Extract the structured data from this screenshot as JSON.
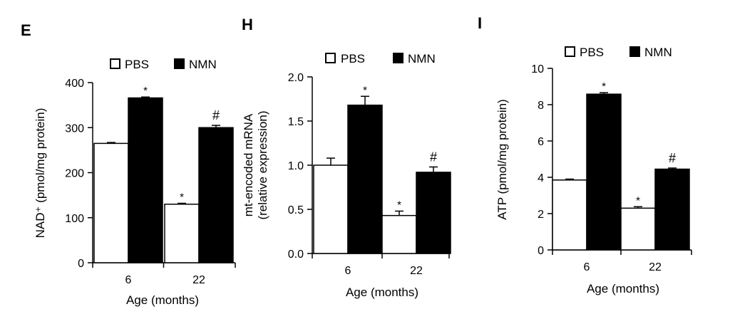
{
  "chart_data": [
    {
      "type": "bar",
      "panel_label": "E",
      "categories": [
        "6",
        "22"
      ],
      "series": [
        {
          "name": "PBS",
          "color": "#ffffff",
          "values": [
            265,
            130
          ],
          "errors": [
            2,
            2
          ]
        },
        {
          "name": "NMN",
          "color": "#000000",
          "values": [
            366,
            300
          ],
          "errors": [
            2,
            5
          ]
        }
      ],
      "annotations": [
        {
          "category": "6",
          "series": "NMN",
          "text": "*"
        },
        {
          "category": "22",
          "series": "PBS",
          "text": "*"
        },
        {
          "category": "22",
          "series": "NMN",
          "text": "#"
        }
      ],
      "xlabel": "Age (months)",
      "ylabel": "NAD⁺ (pmol/mg protein)",
      "ylim": [
        0,
        400
      ],
      "yticks": [
        "0",
        "100",
        "200",
        "300",
        "400"
      ],
      "legend": "top"
    },
    {
      "type": "bar",
      "panel_label": "H",
      "categories": [
        "6",
        "22"
      ],
      "series": [
        {
          "name": "PBS",
          "color": "#ffffff",
          "values": [
            1.0,
            0.43
          ],
          "errors": [
            0.08,
            0.05
          ]
        },
        {
          "name": "NMN",
          "color": "#000000",
          "values": [
            1.68,
            0.92
          ],
          "errors": [
            0.1,
            0.06
          ]
        }
      ],
      "annotations": [
        {
          "category": "6",
          "series": "NMN",
          "text": "*"
        },
        {
          "category": "22",
          "series": "PBS",
          "text": "*"
        },
        {
          "category": "22",
          "series": "NMN",
          "text": "#"
        }
      ],
      "xlabel": "Age (months)",
      "ylabel": "mt-encoded mRNA",
      "ylabel2": "(relative expression)",
      "ylim": [
        0,
        2.0
      ],
      "yticks": [
        "0.0",
        "0.5",
        "1.0",
        "1.5",
        "2.0"
      ],
      "legend": "top"
    },
    {
      "type": "bar",
      "panel_label": "I",
      "categories": [
        "6",
        "22"
      ],
      "series": [
        {
          "name": "PBS",
          "color": "#ffffff",
          "values": [
            3.85,
            2.3
          ],
          "errors": [
            0.05,
            0.08
          ]
        },
        {
          "name": "NMN",
          "color": "#000000",
          "values": [
            8.58,
            4.45
          ],
          "errors": [
            0.08,
            0.06
          ]
        }
      ],
      "annotations": [
        {
          "category": "6",
          "series": "NMN",
          "text": "*"
        },
        {
          "category": "22",
          "series": "PBS",
          "text": "*"
        },
        {
          "category": "22",
          "series": "NMN",
          "text": "#"
        }
      ],
      "xlabel": "Age (months)",
      "ylabel": "ATP (pmol/mg protein)",
      "ylim": [
        0,
        10
      ],
      "yticks": [
        "0",
        "2",
        "4",
        "6",
        "8",
        "10"
      ],
      "legend": "top"
    }
  ]
}
